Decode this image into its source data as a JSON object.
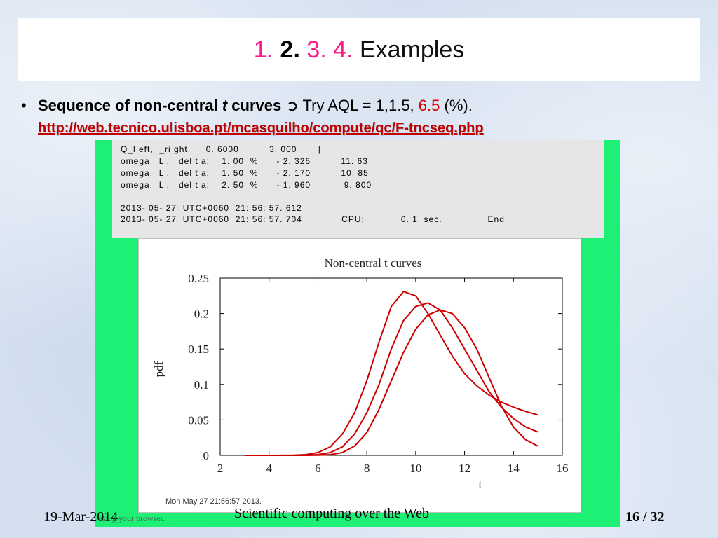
{
  "title": {
    "num1": "1.",
    "num2": "2.",
    "num3": "3.",
    "num4": "4.",
    "text": "Examples"
  },
  "bullet": {
    "marker": "•",
    "bold_text": "Sequence of non-central ",
    "bold_italic": "t",
    "bold_text2": " curves",
    "arrow": "➲",
    "try_text": " Try AQL = 1,1.5, ",
    "red_value": "6.5",
    "tail": " (%).",
    "link": "http://web.tecnico.ulisboa.pt/mcasquilho/compute/qc/F-tncseq.php"
  },
  "terminal": {
    "lines": [
      "Q_l eft,  _ri ght,     0. 6000          3. 000       |",
      "omega,  L',   del t a:    1. 00  %      - 2. 326          11. 63",
      "omega,  L',   del t a:    1. 50  %      - 2. 170          10. 85",
      "omega,  L',   del t a:    2. 50  %      - 1. 960           9. 800",
      "",
      "2013- 05- 27  UTC+0060  21: 56: 57. 612",
      "2013- 05- 27  UTC+0060  21: 56: 57. 704             CPU:            0. 1  sec.               End"
    ]
  },
  "chart_data": {
    "type": "line",
    "title": "Non-central t curves",
    "xlabel": "t",
    "ylabel": "pdf",
    "xlim": [
      2,
      16
    ],
    "ylim": [
      0,
      0.25
    ],
    "xticks": [
      "2",
      "4",
      "6",
      "8",
      "10",
      "12",
      "14",
      "16"
    ],
    "yticks": [
      "0",
      "0.05",
      "0.1",
      "0.15",
      "0.2",
      "0.25"
    ],
    "color": "#cc0000",
    "series": [
      {
        "x": [
          3,
          4,
          5,
          5.5,
          6,
          6.5,
          7,
          7.5,
          8,
          8.5,
          9,
          9.5,
          10,
          10.5,
          11,
          11.5,
          12,
          12.5,
          13,
          13.5,
          14,
          14.5,
          15
        ],
        "values": [
          0,
          0,
          0.0003,
          0.001,
          0.004,
          0.012,
          0.03,
          0.06,
          0.105,
          0.16,
          0.21,
          0.231,
          0.225,
          0.2,
          0.17,
          0.14,
          0.115,
          0.098,
          0.085,
          0.075,
          0.068,
          0.062,
          0.057
        ]
      },
      {
        "x": [
          3,
          4,
          5,
          5.5,
          6,
          6.5,
          7,
          7.5,
          8,
          8.5,
          9,
          9.5,
          10,
          10.5,
          11,
          11.5,
          12,
          12.5,
          13,
          13.5,
          14,
          14.5,
          15
        ],
        "values": [
          0,
          0,
          0,
          0.0003,
          0.001,
          0.004,
          0.012,
          0.03,
          0.06,
          0.1,
          0.15,
          0.19,
          0.21,
          0.215,
          0.205,
          0.18,
          0.15,
          0.12,
          0.09,
          0.068,
          0.052,
          0.04,
          0.033
        ]
      },
      {
        "x": [
          3,
          4,
          5,
          5.5,
          6,
          6.5,
          7,
          7.5,
          8,
          8.5,
          9,
          9.5,
          10,
          10.5,
          11,
          11.5,
          12,
          12.5,
          13,
          13.5,
          14,
          14.5,
          15
        ],
        "values": [
          0,
          0,
          0,
          0,
          0.0003,
          0.001,
          0.004,
          0.013,
          0.032,
          0.065,
          0.105,
          0.145,
          0.178,
          0.198,
          0.205,
          0.2,
          0.18,
          0.15,
          0.11,
          0.07,
          0.04,
          0.022,
          0.013
        ]
      }
    ]
  },
  "chart_stamp": "Mon May 27 21:56:57 2013.",
  "footer": {
    "date": "19-Mar-2014",
    "overlay": "using your browser.",
    "center": "Scientific computing over the Web",
    "page": "16 / 32"
  }
}
